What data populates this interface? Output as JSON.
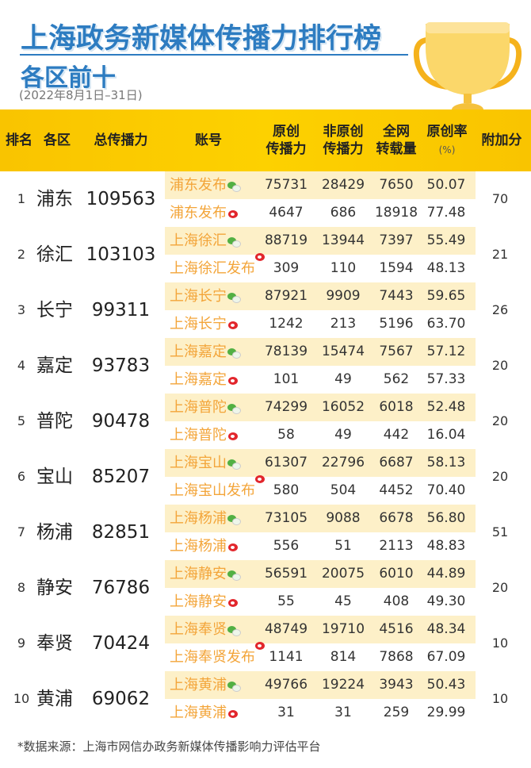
{
  "title": "上海政务新媒体传播力排行榜",
  "subtitle": "各区前十",
  "date_range": "(2022年8月1日–31日)",
  "colors": {
    "title": "#2d7cc1",
    "header": "#fcc800",
    "account": "#f3a53a",
    "wechat_row": "#fdf0c8"
  },
  "headers": {
    "rank": "排名",
    "district": "各区",
    "total": "总传播力",
    "account": "账号",
    "original_1": "原创",
    "original_2": "传播力",
    "nonoriginal_1": "非原创",
    "nonoriginal_2": "传播力",
    "reposts_1": "全网",
    "reposts_2": "转载量",
    "rate_1": "原创率",
    "rate_2": "(%)",
    "bonus": "附加分"
  },
  "rows": [
    {
      "rank": "1",
      "district": "浦东",
      "total": "109563",
      "bonus": "70",
      "accounts": [
        {
          "name": "浦东发布",
          "platform": "wechat",
          "original": "75731",
          "nonoriginal": "28429",
          "reposts": "7650",
          "rate": "50.07"
        },
        {
          "name": "浦东发布",
          "platform": "weibo",
          "original": "4647",
          "nonoriginal": "686",
          "reposts": "18918",
          "rate": "77.48"
        }
      ]
    },
    {
      "rank": "2",
      "district": "徐汇",
      "total": "103103",
      "bonus": "21",
      "accounts": [
        {
          "name": "上海徐汇",
          "platform": "wechat",
          "original": "88719",
          "nonoriginal": "13944",
          "reposts": "7397",
          "rate": "55.49"
        },
        {
          "name": "上海徐汇发布",
          "platform": "weibo",
          "original": "309",
          "nonoriginal": "110",
          "reposts": "1594",
          "rate": "48.13"
        }
      ]
    },
    {
      "rank": "3",
      "district": "长宁",
      "total": "99311",
      "bonus": "26",
      "accounts": [
        {
          "name": "上海长宁",
          "platform": "wechat",
          "original": "87921",
          "nonoriginal": "9909",
          "reposts": "7443",
          "rate": "59.65"
        },
        {
          "name": "上海长宁",
          "platform": "weibo",
          "original": "1242",
          "nonoriginal": "213",
          "reposts": "5196",
          "rate": "63.70"
        }
      ]
    },
    {
      "rank": "4",
      "district": "嘉定",
      "total": "93783",
      "bonus": "20",
      "accounts": [
        {
          "name": "上海嘉定",
          "platform": "wechat",
          "original": "78139",
          "nonoriginal": "15474",
          "reposts": "7567",
          "rate": "57.12"
        },
        {
          "name": "上海嘉定",
          "platform": "weibo",
          "original": "101",
          "nonoriginal": "49",
          "reposts": "562",
          "rate": "57.33"
        }
      ]
    },
    {
      "rank": "5",
      "district": "普陀",
      "total": "90478",
      "bonus": "20",
      "accounts": [
        {
          "name": "上海普陀",
          "platform": "wechat",
          "original": "74299",
          "nonoriginal": "16052",
          "reposts": "6018",
          "rate": "52.48"
        },
        {
          "name": "上海普陀",
          "platform": "weibo",
          "original": "58",
          "nonoriginal": "49",
          "reposts": "442",
          "rate": "16.04"
        }
      ]
    },
    {
      "rank": "6",
      "district": "宝山",
      "total": "85207",
      "bonus": "20",
      "accounts": [
        {
          "name": "上海宝山",
          "platform": "wechat",
          "original": "61307",
          "nonoriginal": "22796",
          "reposts": "6687",
          "rate": "58.13"
        },
        {
          "name": "上海宝山发布",
          "platform": "weibo",
          "original": "580",
          "nonoriginal": "504",
          "reposts": "4452",
          "rate": "70.40"
        }
      ]
    },
    {
      "rank": "7",
      "district": "杨浦",
      "total": "82851",
      "bonus": "51",
      "accounts": [
        {
          "name": "上海杨浦",
          "platform": "wechat",
          "original": "73105",
          "nonoriginal": "9088",
          "reposts": "6678",
          "rate": "56.80"
        },
        {
          "name": "上海杨浦",
          "platform": "weibo",
          "original": "556",
          "nonoriginal": "51",
          "reposts": "2113",
          "rate": "48.83"
        }
      ]
    },
    {
      "rank": "8",
      "district": "静安",
      "total": "76786",
      "bonus": "20",
      "accounts": [
        {
          "name": "上海静安",
          "platform": "wechat",
          "original": "56591",
          "nonoriginal": "20075",
          "reposts": "6010",
          "rate": "44.89"
        },
        {
          "name": "上海静安",
          "platform": "weibo",
          "original": "55",
          "nonoriginal": "45",
          "reposts": "408",
          "rate": "49.30"
        }
      ]
    },
    {
      "rank": "9",
      "district": "奉贤",
      "total": "70424",
      "bonus": "10",
      "accounts": [
        {
          "name": "上海奉贤",
          "platform": "wechat",
          "original": "48749",
          "nonoriginal": "19710",
          "reposts": "4516",
          "rate": "48.34"
        },
        {
          "name": "上海奉贤发布",
          "platform": "weibo",
          "original": "1141",
          "nonoriginal": "814",
          "reposts": "7868",
          "rate": "67.09"
        }
      ]
    },
    {
      "rank": "10",
      "district": "黄浦",
      "total": "69062",
      "bonus": "10",
      "accounts": [
        {
          "name": "上海黄浦",
          "platform": "wechat",
          "original": "49766",
          "nonoriginal": "19224",
          "reposts": "3943",
          "rate": "50.43"
        },
        {
          "name": "上海黄浦",
          "platform": "weibo",
          "original": "31",
          "nonoriginal": "31",
          "reposts": "259",
          "rate": "29.99"
        }
      ]
    }
  ],
  "footer": "*数据来源：上海市网信办政务新媒体传播影响力评估平台"
}
